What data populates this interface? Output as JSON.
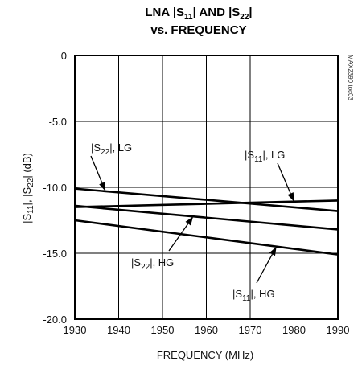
{
  "chart_data": {
    "type": "line",
    "title_parts": {
      "line1_prefix": "LNA |S",
      "s11_sub": "11",
      "line1_mid": "| AND |S",
      "s22_sub": "22",
      "line1_suffix": "|",
      "line2": "vs. FREQUENCY"
    },
    "xlabel": "FREQUENCY (MHz)",
    "ylabel_parts": {
      "a": "|S",
      "a_sub": "11",
      "b": "|,  |S",
      "b_sub": "22",
      "c": "| (dB)"
    },
    "xlim": [
      1930,
      1990
    ],
    "ylim": [
      -20.0,
      0
    ],
    "x_ticks": [
      "1930",
      "1940",
      "1950",
      "1960",
      "1970",
      "1980",
      "1990"
    ],
    "y_ticks": [
      "0",
      "-5.0",
      "-10.0",
      "-15.0",
      "-20.0"
    ],
    "grid": true,
    "series": [
      {
        "name": "|S22|, LG",
        "x": [
          1930,
          1990
        ],
        "y": [
          -10.1,
          -11.8
        ]
      },
      {
        "name": "|S11|, LG",
        "x": [
          1930,
          1990
        ],
        "y": [
          -11.5,
          -11.0
        ]
      },
      {
        "name": "|S22|, HG",
        "x": [
          1930,
          1990
        ],
        "y": [
          -11.4,
          -13.2
        ]
      },
      {
        "name": "|S11|, HG",
        "x": [
          1930,
          1990
        ],
        "y": [
          -12.5,
          -15.1
        ]
      }
    ],
    "annotations": [
      {
        "series": 0,
        "main": "|S",
        "sub": "22",
        "rest": "|, LG"
      },
      {
        "series": 1,
        "main": "|S",
        "sub": "11",
        "rest": "|, LG"
      },
      {
        "series": 2,
        "main": "|S",
        "sub": "22",
        "rest": "|, HG"
      },
      {
        "series": 3,
        "main": "|S",
        "sub": "11",
        "rest": "|, HG"
      }
    ],
    "figure_code": "MAX2390 toc03"
  }
}
